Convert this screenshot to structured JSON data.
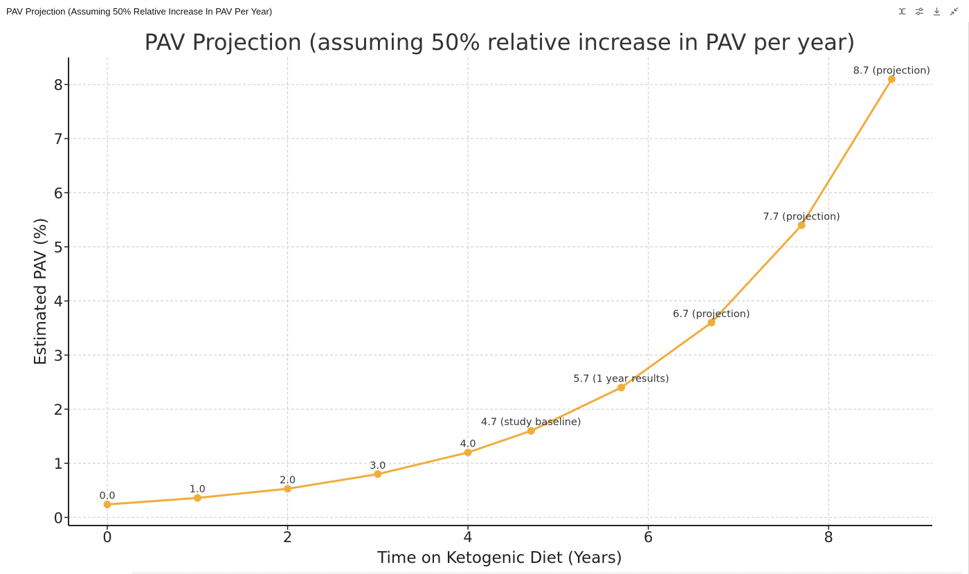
{
  "window": {
    "title": "PAV Projection (Assuming 50% Relative Increase In PAV Per Year)",
    "toolbar": [
      {
        "name": "interactive-icon",
        "label": "interactive"
      },
      {
        "name": "settings-icon",
        "label": "settings"
      },
      {
        "name": "download-icon",
        "label": "download"
      },
      {
        "name": "collapse-icon",
        "label": "collapse"
      }
    ]
  },
  "colors": {
    "series": "#f0ad3c",
    "grid": "#c8c8c8",
    "axis": "#222222",
    "text": "#333333"
  },
  "chart_data": {
    "type": "line",
    "title": "PAV Projection (assuming 50% relative increase in PAV per year)",
    "xlabel": "Time on Ketogenic Diet (Years)",
    "ylabel": "Estimated PAV (%)",
    "xlim": [
      -0.43,
      9.15
    ],
    "ylim": [
      -0.15,
      8.5
    ],
    "xticks": [
      0,
      2,
      4,
      6,
      8
    ],
    "yticks": [
      0,
      1,
      2,
      3,
      4,
      5,
      6,
      7,
      8
    ],
    "grid": true,
    "grid_style": "dashed",
    "x": [
      0,
      1,
      2,
      3,
      4,
      4.7,
      5.7,
      6.7,
      7.7,
      8.7
    ],
    "values": [
      0.24,
      0.36,
      0.53,
      0.8,
      1.2,
      1.6,
      2.4,
      3.6,
      5.4,
      8.1
    ],
    "point_labels": [
      "0.0",
      "1.0",
      "2.0",
      "3.0",
      "4.0",
      "4.7 (study baseline)",
      "5.7 (1 year results)",
      "6.7 (projection)",
      "7.7 (projection)",
      "8.7 (projection)"
    ]
  }
}
